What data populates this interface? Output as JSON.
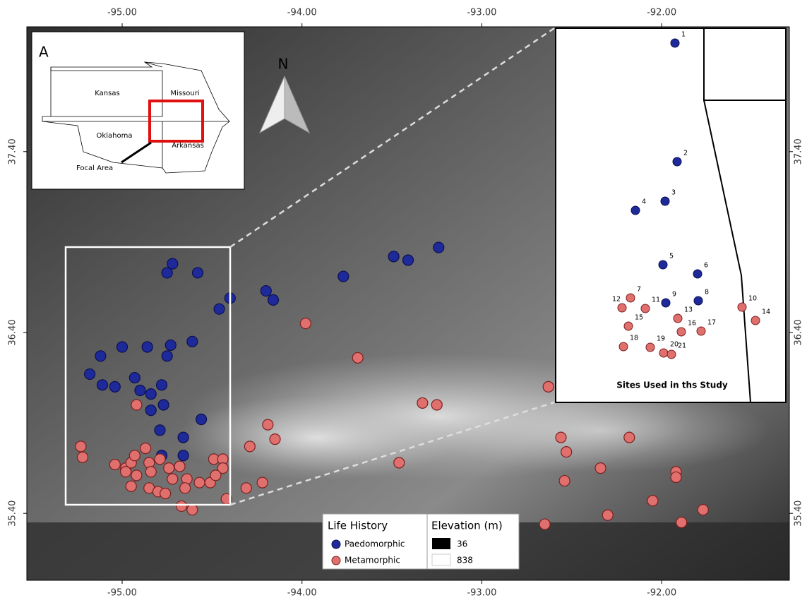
{
  "map": {
    "xlim": [
      -95.53,
      -91.29
    ],
    "ylim": [
      35.03,
      38.09
    ],
    "xticks": [
      {
        "value": -95,
        "label": "-95.00"
      },
      {
        "value": -94,
        "label": "-94.00"
      },
      {
        "value": -93,
        "label": "-93.00"
      },
      {
        "value": -92,
        "label": "-92.00"
      }
    ],
    "yticks": [
      {
        "value": 37.4,
        "label": "37.40"
      },
      {
        "value": 36.4,
        "label": "36.40"
      },
      {
        "value": 35.4,
        "label": "35.40"
      }
    ],
    "series": [
      {
        "name": "Paedomorphic",
        "color": "#1f2a9a",
        "lon": [
          -94.75,
          -94.72,
          -94.58,
          -94.4,
          -94.46,
          -94.2,
          -94.16,
          -93.77,
          -93.49,
          -93.41,
          -93.24,
          -95.12,
          -95.0,
          -94.86,
          -94.73,
          -94.75,
          -94.61,
          -95.18,
          -95.11,
          -95.04,
          -94.93,
          -94.9,
          -94.84,
          -94.78,
          -94.77,
          -94.84,
          -94.56,
          -94.79,
          -94.66,
          -94.66,
          -94.78
        ],
        "lat": [
          36.73,
          36.78,
          36.73,
          36.59,
          36.53,
          36.63,
          36.58,
          36.71,
          36.82,
          36.8,
          36.87,
          36.27,
          36.32,
          36.32,
          36.33,
          36.27,
          36.35,
          36.17,
          36.11,
          36.1,
          36.15,
          36.08,
          36.06,
          36.11,
          36.0,
          35.97,
          35.92,
          35.86,
          35.82,
          35.72,
          35.72
        ]
      },
      {
        "name": "Metamorphic",
        "color": "#e0706e",
        "lon": [
          -93.98,
          -93.69,
          -93.33,
          -93.25,
          -92.63,
          -94.92,
          -94.19,
          -94.15,
          -94.29,
          -95.23,
          -95.22,
          -95.04,
          -94.98,
          -94.95,
          -94.93,
          -94.87,
          -94.85,
          -94.79,
          -94.74,
          -94.68,
          -94.98,
          -94.92,
          -94.84,
          -94.72,
          -94.64,
          -94.57,
          -94.51,
          -94.49,
          -94.44,
          -94.44,
          -94.48,
          -94.95,
          -94.85,
          -94.8,
          -94.76,
          -94.65,
          -94.31,
          -94.22,
          -94.42,
          -94.67,
          -94.61,
          -93.46,
          -92.56,
          -92.53,
          -92.54,
          -92.34,
          -92.18,
          -91.92,
          -91.92,
          -92.05,
          -92.3,
          -92.65,
          -91.89,
          -91.77
        ],
        "lat": [
          36.45,
          36.26,
          36.01,
          36.0,
          36.1,
          36.0,
          35.89,
          35.81,
          35.77,
          35.77,
          35.71,
          35.67,
          35.65,
          35.68,
          35.72,
          35.76,
          35.68,
          35.7,
          35.65,
          35.66,
          35.63,
          35.61,
          35.63,
          35.59,
          35.59,
          35.57,
          35.57,
          35.7,
          35.7,
          35.65,
          35.61,
          35.55,
          35.54,
          35.52,
          35.51,
          35.54,
          35.54,
          35.57,
          35.48,
          35.44,
          35.42,
          35.68,
          35.82,
          35.74,
          35.58,
          35.65,
          35.82,
          35.63,
          35.6,
          35.47,
          35.39,
          35.34,
          35.35,
          35.42
        ]
      }
    ]
  },
  "locator": {
    "panel": "A",
    "states": [
      "Kansas",
      "Missouri",
      "Oklahoma",
      "Arkansas"
    ],
    "focal_label": "Focal Area"
  },
  "north_arrow": "N",
  "inset": {
    "title": "Sites Used in ths Study",
    "sites": [
      "1",
      "2",
      "3",
      "4",
      "5",
      "6",
      "7",
      "8",
      "9",
      "10",
      "11",
      "12",
      "13",
      "14",
      "15",
      "16",
      "17",
      "18",
      "19",
      "20",
      "21"
    ]
  },
  "legend": {
    "life_history_title": "Life History",
    "elevation_title": "Elevation (m)",
    "elevation_min": 36,
    "elevation_max": 838
  }
}
